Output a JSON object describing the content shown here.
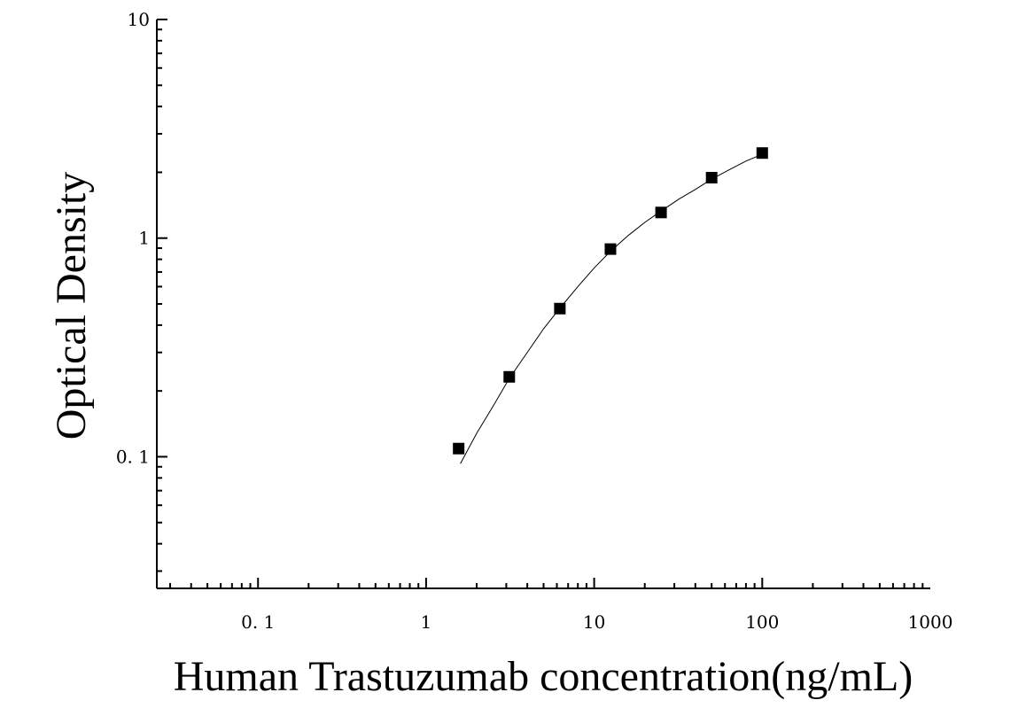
{
  "chart_data": {
    "type": "scatter",
    "title": "",
    "xlabel": "Human Trastuzumab concentration(ng/mL)",
    "ylabel": "Optical Density",
    "xscale": "log",
    "yscale": "log",
    "xlim": [
      0.025,
      1000
    ],
    "ylim": [
      0.025,
      10
    ],
    "x_ticks": [
      {
        "value": 0.1,
        "label": "0. 1"
      },
      {
        "value": 1,
        "label": "1"
      },
      {
        "value": 10,
        "label": "10"
      },
      {
        "value": 100,
        "label": "100"
      },
      {
        "value": 1000,
        "label": "1000"
      }
    ],
    "y_ticks": [
      {
        "value": 0.1,
        "label": "0. 1"
      },
      {
        "value": 1,
        "label": "1"
      },
      {
        "value": 10,
        "label": "10"
      }
    ],
    "grid": false,
    "legend": "none",
    "series": [
      {
        "points": [
          {
            "x": 1.5625,
            "y": 0.109
          },
          {
            "x": 3.125,
            "y": 0.232
          },
          {
            "x": 6.25,
            "y": 0.476
          },
          {
            "x": 12.5,
            "y": 0.891
          },
          {
            "x": 25,
            "y": 1.31
          },
          {
            "x": 50,
            "y": 1.89
          },
          {
            "x": 100,
            "y": 2.45
          }
        ],
        "marker": "square",
        "color": "#000000"
      }
    ],
    "fit_curve": {
      "x": [
        1.6,
        2,
        2.5,
        3.125,
        4,
        5,
        6.25,
        8,
        10,
        12.5,
        16,
        20,
        25,
        32,
        40,
        50,
        64,
        80,
        100
      ],
      "y": [
        0.093,
        0.128,
        0.17,
        0.228,
        0.3,
        0.385,
        0.478,
        0.6,
        0.73,
        0.87,
        1.03,
        1.18,
        1.33,
        1.51,
        1.67,
        1.86,
        2.06,
        2.25,
        2.42
      ],
      "color": "#000000"
    }
  }
}
